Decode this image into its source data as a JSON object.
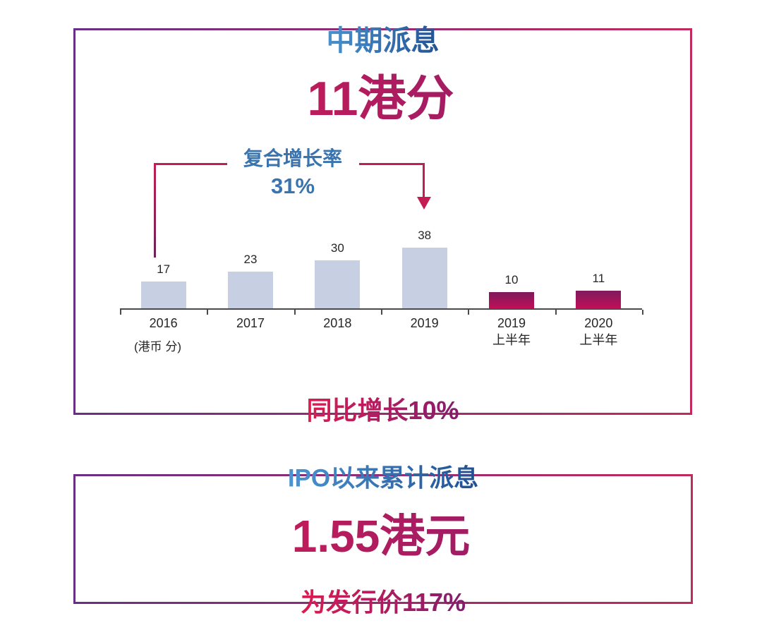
{
  "interim_box": {
    "title": "中期派息",
    "headline": "11港分",
    "cagr": {
      "label": "复合增长率",
      "value": "31%"
    },
    "unit_note": "(港币 分)",
    "footer": "同比增长10%"
  },
  "ipo_box": {
    "title": "IPO以来累计派息",
    "headline": "1.55港元",
    "footer": "为发行价117%"
  },
  "chart_data": {
    "type": "bar",
    "categories": [
      "2016",
      "2017",
      "2018",
      "2019",
      "2019上半年",
      "2020上半年"
    ],
    "values": [
      17,
      23,
      30,
      38,
      10,
      11
    ],
    "unit_label": "(港币 分)",
    "ylim": [
      0,
      40
    ],
    "grid": false,
    "legend": false,
    "annotation": {
      "label": "复合增长率",
      "value": "31%",
      "from": "2016",
      "to": "2019"
    },
    "points": [
      {
        "label_lines": [
          "2016"
        ],
        "value": 17,
        "style": "annual"
      },
      {
        "label_lines": [
          "2017"
        ],
        "value": 23,
        "style": "annual"
      },
      {
        "label_lines": [
          "2018"
        ],
        "value": 30,
        "style": "annual"
      },
      {
        "label_lines": [
          "2019"
        ],
        "value": 38,
        "style": "annual"
      },
      {
        "label_lines": [
          "2019",
          "上半年"
        ],
        "value": 10,
        "style": "half_year"
      },
      {
        "label_lines": [
          "2020",
          "上半年"
        ],
        "value": 11,
        "style": "half_year"
      }
    ]
  },
  "colors": {
    "border_start": "#6b2e86",
    "border_end": "#c22a5c",
    "blue_start": "#4f9ad6",
    "blue_end": "#1d4a8c",
    "accent_start": "#e41c4d",
    "accent_end": "#7b1d71",
    "annotation_blue": "#3a74ae",
    "line_crimson": "#c31d54",
    "bracket_dark": "#6e2158",
    "axis": "#4a4a4a",
    "text_dark": "#262626",
    "bar_annual": "#c7cfe2",
    "bar_half_top": "#7e1a5c",
    "bar_half_bottom": "#c00f57"
  }
}
